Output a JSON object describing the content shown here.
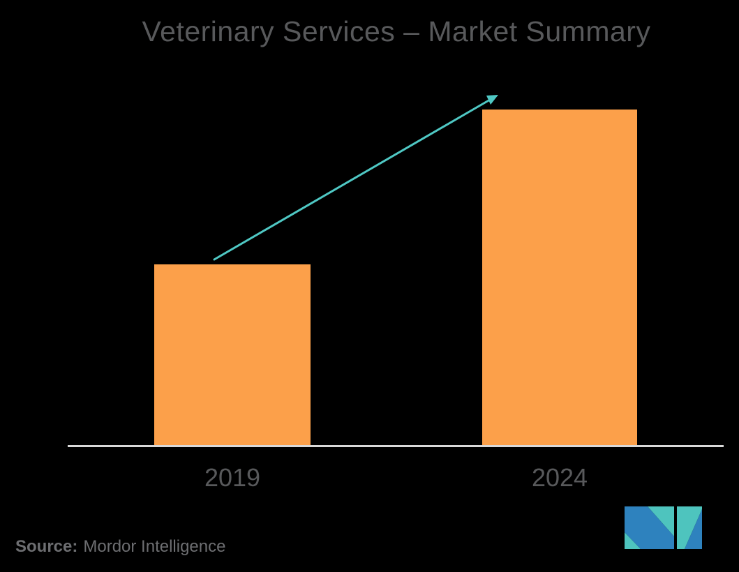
{
  "title": "Veterinary Services – Market Summary",
  "chart_data": {
    "type": "bar",
    "categories": [
      "2019",
      "2024"
    ],
    "values": [
      54,
      100
    ],
    "values_note": "relative bar heights in % of tallest bar; no numeric y-axis or data labels are shown in the image",
    "title": "Veterinary Services – Market Summary",
    "xlabel": "",
    "ylabel": "",
    "grid": false,
    "legend": "none",
    "annotations": [
      "teal upward trend arrow pointing from top of 2019 bar to top of 2024 bar"
    ]
  },
  "source": {
    "label": "Source:",
    "name": "Mordor Intelligence"
  },
  "colors": {
    "background": "#000000",
    "bar": "#FCA04A",
    "arrow": "#4FC8C4",
    "axis_line": "#D9D9D9",
    "title_text": "#58595B",
    "tick_text": "#58595B",
    "source_text": "#6D6E71",
    "logo_teal": "#4EC4BE",
    "logo_blue": "#2E82BE"
  },
  "logo": {
    "name": "mordor-intelligence-logo"
  }
}
